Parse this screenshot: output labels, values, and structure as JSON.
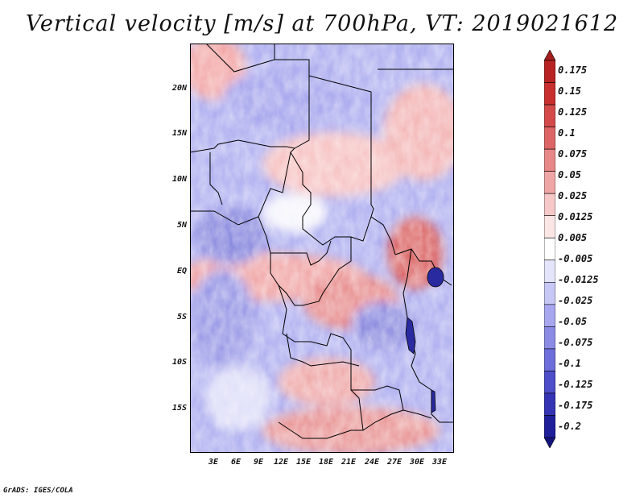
{
  "title": "Vertical velocity [m/s] at 700hPa, VT: 2019021612",
  "footer": "GrADS: IGES/COLA",
  "map": {
    "lat_labels": [
      "20N",
      "15N",
      "10N",
      "5N",
      "EQ",
      "5S",
      "10S",
      "15S"
    ],
    "lon_labels": [
      "3E",
      "6E",
      "9E",
      "12E",
      "15E",
      "18E",
      "21E",
      "24E",
      "27E",
      "30E",
      "33E"
    ],
    "field": "vertical velocity",
    "level": "700hPa",
    "units": "m/s"
  },
  "colorbar": {
    "labels": [
      "0.175",
      "0.15",
      "0.125",
      "0.1",
      "0.075",
      "0.05",
      "0.025",
      "0.0125",
      "0.005",
      "-0.005",
      "-0.0125",
      "-0.025",
      "-0.05",
      "-0.075",
      "-0.1",
      "-0.125",
      "-0.175",
      "-0.2"
    ],
    "colors": [
      "#a51c1c",
      "#b82323",
      "#c83030",
      "#d44a4a",
      "#de6565",
      "#e88787",
      "#f0a6a6",
      "#f6c8c8",
      "#fbe6e6",
      "#ffffff",
      "#e4e4fb",
      "#c8c8f6",
      "#a7a7f0",
      "#8b8be6",
      "#6d6ddb",
      "#4e4ecb",
      "#3434b5",
      "#1f1f99",
      "#14147d"
    ]
  }
}
